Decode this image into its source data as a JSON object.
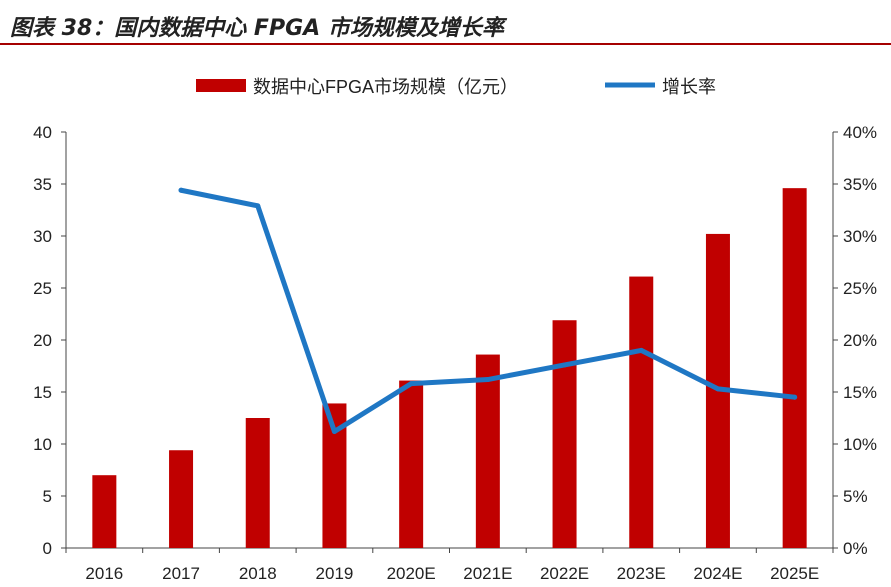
{
  "figure": {
    "title": "图表 38：国内数据中心 FPGA 市场规模及增长率"
  },
  "colors": {
    "bar": "#c00000",
    "line": "#1f77c4",
    "title_rule": "#a50000"
  },
  "chart_data": {
    "type": "bar+line",
    "categories": [
      "2016",
      "2017",
      "2018",
      "2019",
      "2020E",
      "2021E",
      "2022E",
      "2023E",
      "2024E",
      "2025E"
    ],
    "series": [
      {
        "name": "数据中心FPGA市场规模（亿元）",
        "type": "bar",
        "axis": "left",
        "values": [
          7.0,
          9.4,
          12.5,
          13.9,
          16.1,
          18.6,
          21.9,
          26.1,
          30.2,
          34.6
        ]
      },
      {
        "name": "增长率",
        "type": "line",
        "axis": "right",
        "values": [
          null,
          34.4,
          32.9,
          11.2,
          15.8,
          16.2,
          17.6,
          19.0,
          15.3,
          14.5
        ]
      }
    ],
    "y_left": {
      "min": 0,
      "max": 40,
      "ticks": [
        "0",
        "5",
        "10",
        "15",
        "20",
        "25",
        "30",
        "35",
        "40"
      ]
    },
    "y_right": {
      "min": 0,
      "max": 40,
      "ticks": [
        "0%",
        "5%",
        "10%",
        "15%",
        "20%",
        "25%",
        "30%",
        "35%",
        "40%"
      ]
    },
    "legend_position": "top-center",
    "grid": false
  }
}
